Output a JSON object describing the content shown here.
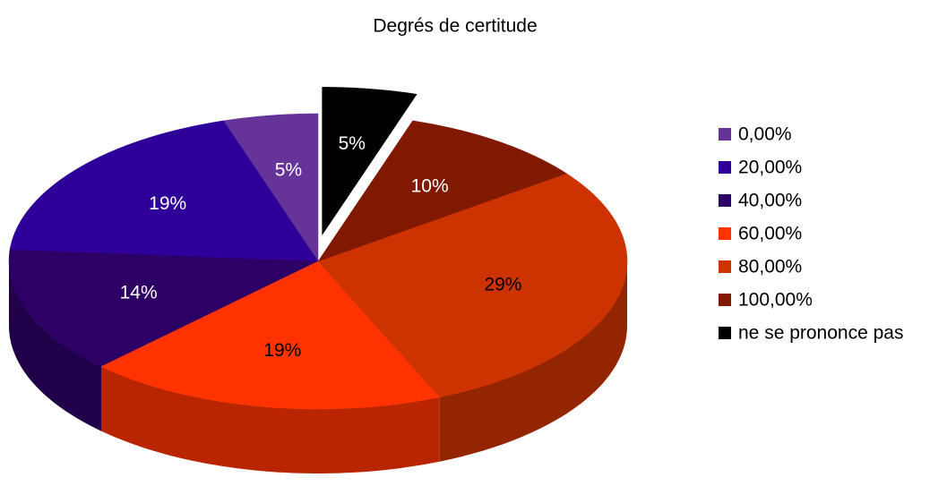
{
  "chart_data": {
    "type": "pie",
    "title": "Degrés de certitude",
    "categories": [
      "0,00%",
      "20,00%",
      "40,00%",
      "60,00%",
      "80,00%",
      "100,00%",
      "ne se prononce pas"
    ],
    "values": [
      5,
      19,
      14,
      19,
      29,
      10,
      5
    ],
    "value_labels": [
      "5%",
      "19%",
      "14%",
      "19%",
      "29%",
      "10%",
      "5%"
    ],
    "colors": [
      "#663399",
      "#2e0099",
      "#2d0066",
      "#ff3300",
      "#cc3300",
      "#801900",
      "#000000"
    ],
    "legend": "right"
  }
}
